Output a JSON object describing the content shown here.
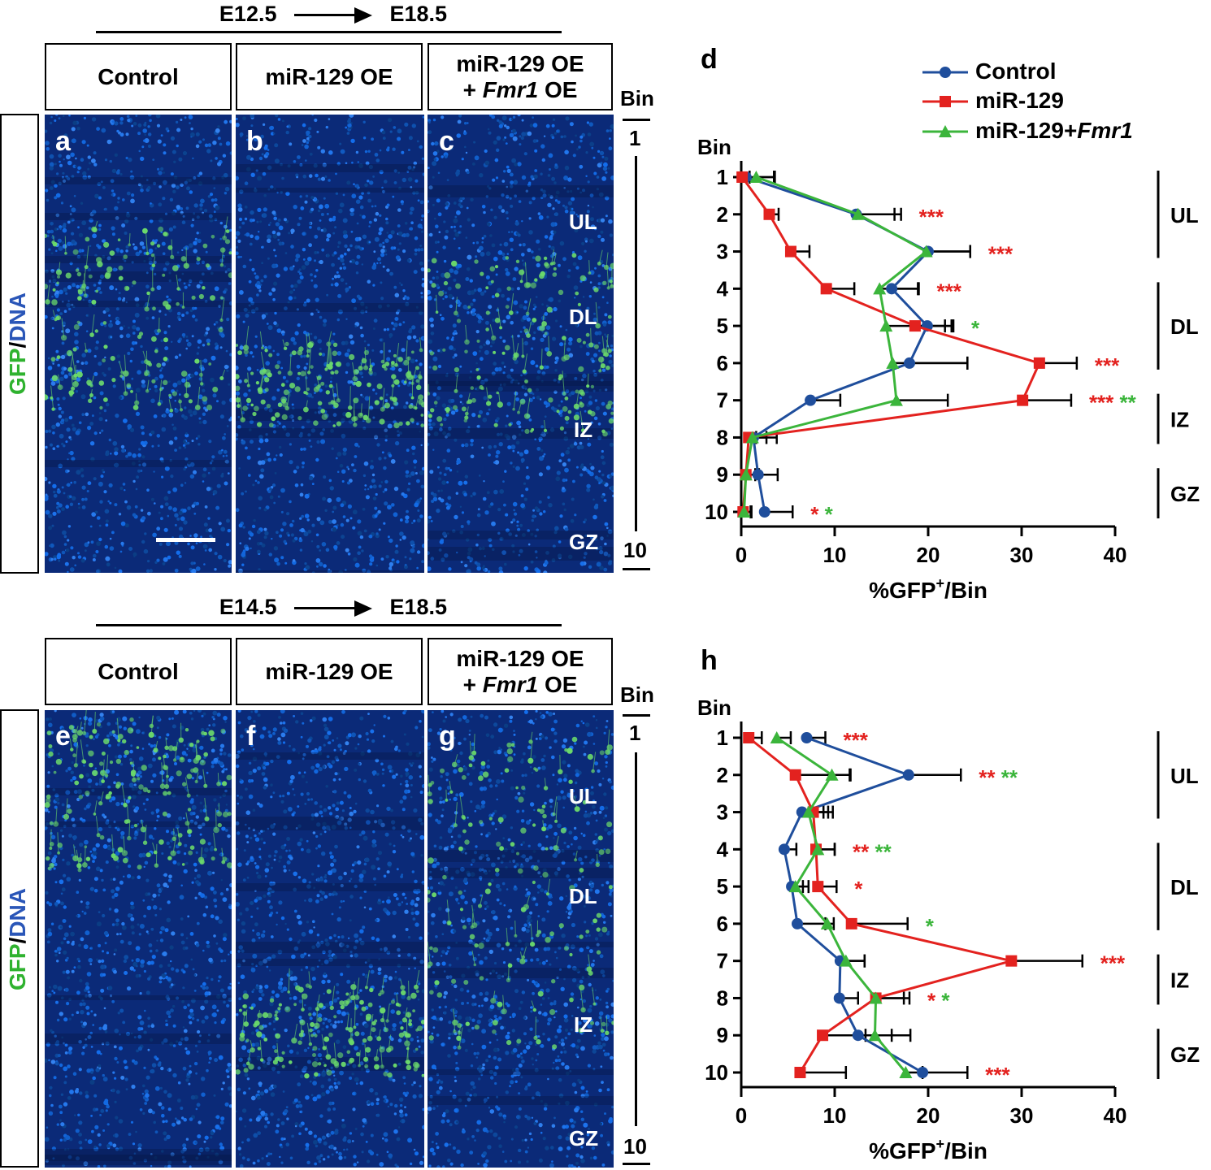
{
  "top": {
    "timeline": {
      "from": "E12.5",
      "to": "E18.5"
    },
    "conditions": [
      {
        "line1": "Control",
        "line2": "",
        "gene": ""
      },
      {
        "line1": "miR-129 OE",
        "line2": "",
        "gene": ""
      },
      {
        "line1": "miR-129 OE",
        "line2": "+ ",
        "gene": "Fmr1",
        "suffix": " OE"
      }
    ],
    "panels": [
      "a",
      "b",
      "c"
    ],
    "zones": [
      "UL",
      "DL",
      "IZ",
      "GZ"
    ],
    "stain": {
      "gfp": "GFP",
      "slash": "/",
      "dna": "DNA"
    },
    "bin_header": "Bin",
    "bin_top": "1",
    "bin_bottom": "10"
  },
  "bottom": {
    "timeline": {
      "from": "E14.5",
      "to": "E18.5"
    },
    "conditions": [
      {
        "line1": "Control",
        "line2": "",
        "gene": ""
      },
      {
        "line1": "miR-129 OE",
        "line2": "",
        "gene": ""
      },
      {
        "line1": "miR-129 OE",
        "line2": "+ ",
        "gene": "Fmr1",
        "suffix": " OE"
      }
    ],
    "panels": [
      "e",
      "f",
      "g"
    ],
    "zones": [
      "UL",
      "DL",
      "IZ",
      "GZ"
    ],
    "stain": {
      "gfp": "GFP",
      "slash": "/",
      "dna": "DNA"
    },
    "bin_header": "Bin",
    "bin_top": "1",
    "bin_bottom": "10"
  },
  "legend": {
    "control": "Control",
    "mir129": "miR-129",
    "mir129fmr1_prefix": "miR-129+",
    "mir129fmr1_gene": "Fmr1"
  },
  "colors": {
    "control": "#1f4e9c",
    "mir129": "#e3221f",
    "fmr1": "#3bb53b",
    "tissue": "#0b2a78",
    "gfp": "#6bd96b"
  },
  "chart_data": [
    {
      "panel": "d",
      "type": "line",
      "orientation": "horizontal-values-vertical-bins",
      "y_label": "Bin",
      "x_label_prefix": "%GFP",
      "x_label_sup": "+",
      "x_label_suffix": "/Bin",
      "xlim": [
        0,
        40
      ],
      "xticks": [
        "0",
        "10",
        "20",
        "30",
        "40"
      ],
      "bins": [
        "1",
        "2",
        "3",
        "4",
        "5",
        "6",
        "7",
        "8",
        "9",
        "10"
      ],
      "series": [
        {
          "name": "Control",
          "values": [
            0.5,
            12.3,
            20.0,
            16.1,
            19.9,
            18.0,
            7.4,
            1.3,
            1.8,
            2.5
          ],
          "errors": [
            3.0,
            4.8,
            4.5,
            2.8,
            2.8,
            6.2,
            3.2,
            2.5,
            2.1,
            3.0
          ]
        },
        {
          "name": "miR-129",
          "values": [
            0.1,
            3.0,
            5.3,
            9.1,
            18.6,
            31.9,
            30.1,
            0.8,
            0.5,
            0.2
          ],
          "errors": [
            0.8,
            1.0,
            2.0,
            3.0,
            3.2,
            4.0,
            5.2,
            0.8,
            1.4,
            0.8
          ]
        },
        {
          "name": "miR-129+Fmr1",
          "values": [
            1.6,
            12.5,
            19.8,
            14.8,
            15.5,
            16.2,
            16.6,
            1.2,
            0.5,
            0.3
          ],
          "errors": [
            2.0,
            3.9,
            4.7,
            4.2,
            7.0,
            8.0,
            5.5,
            1.5,
            1.0,
            0.8
          ]
        }
      ],
      "significance": [
        {
          "bin": "2",
          "red": "***",
          "green": ""
        },
        {
          "bin": "3",
          "red": "***",
          "green": ""
        },
        {
          "bin": "4",
          "red": "***",
          "green": ""
        },
        {
          "bin": "5",
          "red": "",
          "green": "*"
        },
        {
          "bin": "6",
          "red": "***",
          "green": ""
        },
        {
          "bin": "7",
          "red": "***",
          "green": "**"
        },
        {
          "bin": "10",
          "red": "*",
          "green": "*"
        }
      ],
      "zones": [
        {
          "label": "UL",
          "from_bin": 1,
          "to_bin": 3
        },
        {
          "label": "DL",
          "from_bin": 4,
          "to_bin": 6
        },
        {
          "label": "IZ",
          "from_bin": 7,
          "to_bin": 8
        },
        {
          "label": "GZ",
          "from_bin": 9,
          "to_bin": 10
        }
      ]
    },
    {
      "panel": "h",
      "type": "line",
      "orientation": "horizontal-values-vertical-bins",
      "y_label": "Bin",
      "x_label_prefix": "%GFP",
      "x_label_sup": "+",
      "x_label_suffix": "/Bin",
      "xlim": [
        0,
        40
      ],
      "xticks": [
        "0",
        "10",
        "20",
        "30",
        "40"
      ],
      "bins": [
        "1",
        "2",
        "3",
        "4",
        "5",
        "6",
        "7",
        "8",
        "9",
        "10"
      ],
      "series": [
        {
          "name": "Control",
          "values": [
            7.0,
            17.9,
            6.5,
            4.6,
            5.4,
            6.0,
            10.6,
            10.5,
            12.5,
            19.4
          ],
          "errors": [
            2.0,
            5.6,
            2.3,
            1.3,
            1.2,
            3.0,
            2.6,
            2.0,
            5.6,
            4.8
          ]
        },
        {
          "name": "miR-129",
          "values": [
            0.8,
            5.8,
            7.7,
            8.0,
            8.2,
            11.8,
            28.9,
            14.4,
            8.7,
            6.3
          ],
          "errors": [
            1.4,
            5.8,
            1.6,
            2.0,
            2.0,
            6.0,
            7.6,
            3.6,
            4.6,
            4.9
          ]
        },
        {
          "name": "miR-129+Fmr1",
          "values": [
            3.8,
            9.7,
            7.2,
            8.2,
            5.8,
            9.2,
            11.2,
            14.4,
            14.3,
            17.6
          ],
          "errors": [
            1.5,
            2.0,
            2.6,
            1.8,
            1.4,
            0.7,
            2.0,
            3.0,
            1.8,
            1.8
          ]
        }
      ],
      "significance": [
        {
          "bin": "1",
          "red": "***",
          "green": ""
        },
        {
          "bin": "2",
          "red": "**",
          "green": "**"
        },
        {
          "bin": "4",
          "red": "**",
          "green": "**"
        },
        {
          "bin": "5",
          "red": "*",
          "green": ""
        },
        {
          "bin": "6",
          "red": "",
          "green": "*"
        },
        {
          "bin": "7",
          "red": "***",
          "green": ""
        },
        {
          "bin": "8",
          "red": "*",
          "green": "*"
        },
        {
          "bin": "10",
          "red": "***",
          "green": ""
        }
      ],
      "zones": [
        {
          "label": "UL",
          "from_bin": 1,
          "to_bin": 3
        },
        {
          "label": "DL",
          "from_bin": 4,
          "to_bin": 6
        },
        {
          "label": "IZ",
          "from_bin": 7,
          "to_bin": 8
        },
        {
          "label": "GZ",
          "from_bin": 9,
          "to_bin": 10
        }
      ]
    }
  ]
}
